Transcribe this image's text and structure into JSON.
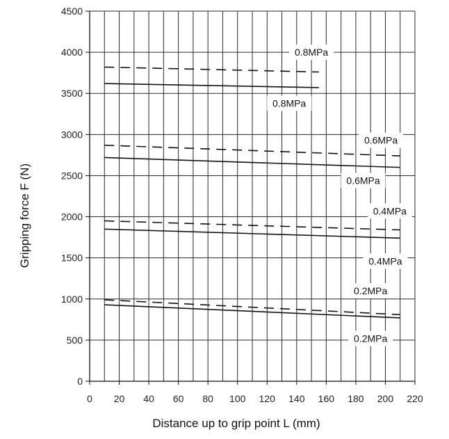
{
  "chart_data": {
    "type": "line",
    "title": "",
    "xlabel": "Distance up to grip point L (mm)",
    "ylabel": "Gripping force F (N)",
    "xlim": [
      0,
      220
    ],
    "ylim": [
      0,
      4500
    ],
    "xticks": [
      0,
      20,
      40,
      60,
      80,
      100,
      120,
      140,
      160,
      180,
      200,
      220
    ],
    "yticks": [
      0,
      500,
      1000,
      1500,
      2000,
      2500,
      3000,
      3500,
      4000,
      4500
    ],
    "grid": "vertical lines every 10 mm; horizontal lines at y ticks",
    "series": [
      {
        "name": "0.8MPa",
        "style": "dashed",
        "x": [
          10,
          155
        ],
        "y": [
          3820,
          3760
        ]
      },
      {
        "name": "0.8MPa",
        "style": "solid",
        "x": [
          10,
          155
        ],
        "y": [
          3620,
          3570
        ]
      },
      {
        "name": "0.6MPa",
        "style": "dashed",
        "x": [
          10,
          210
        ],
        "y": [
          2870,
          2740
        ]
      },
      {
        "name": "0.6MPa",
        "style": "solid",
        "x": [
          10,
          210
        ],
        "y": [
          2720,
          2600
        ]
      },
      {
        "name": "0.4MPa",
        "style": "dashed",
        "x": [
          10,
          210
        ],
        "y": [
          1950,
          1840
        ]
      },
      {
        "name": "0.4MPa",
        "style": "solid",
        "x": [
          10,
          210
        ],
        "y": [
          1850,
          1740
        ]
      },
      {
        "name": "0.2MPa",
        "style": "dashed",
        "x": [
          10,
          210
        ],
        "y": [
          990,
          810
        ]
      },
      {
        "name": "0.2MPa",
        "style": "solid",
        "x": [
          10,
          210
        ],
        "y": [
          930,
          770
        ]
      }
    ],
    "annotations": [
      {
        "text": "0.8MPa",
        "x": 150,
        "y": 4000
      },
      {
        "text": "0.8MPa",
        "x": 135,
        "y": 3380
      },
      {
        "text": "0.6MPa",
        "x": 197,
        "y": 2930
      },
      {
        "text": "0.6MPa",
        "x": 185,
        "y": 2440
      },
      {
        "text": "0.4MPa",
        "x": 203,
        "y": 2070
      },
      {
        "text": "0.4MPa",
        "x": 200,
        "y": 1460
      },
      {
        "text": "0.2MPa",
        "x": 190,
        "y": 1100
      },
      {
        "text": "0.2MPa",
        "x": 190,
        "y": 520
      }
    ]
  }
}
